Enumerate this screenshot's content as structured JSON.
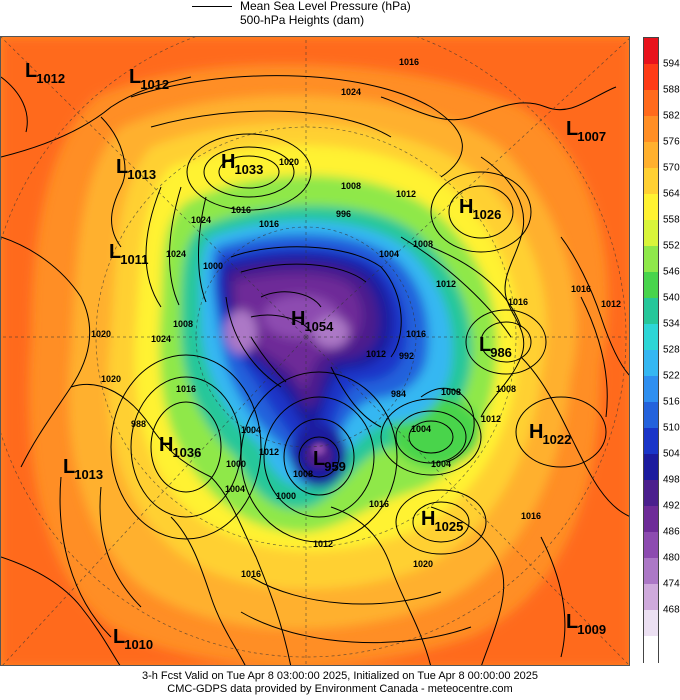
{
  "legend": {
    "line_label_1": "Mean Sea Level Pressure (hPa)",
    "line_label_2": "500-hPa Heights (dam)"
  },
  "colorbar": {
    "ticks": [
      "594",
      "588",
      "582",
      "576",
      "570",
      "564",
      "558",
      "552",
      "546",
      "540",
      "534",
      "528",
      "522",
      "516",
      "510",
      "504",
      "498",
      "492",
      "486",
      "480",
      "474",
      "468"
    ],
    "colors": [
      "#e8121c",
      "#fe3b16",
      "#ff6a1c",
      "#ff8e25",
      "#ffb02e",
      "#ffd033",
      "#fff232",
      "#d9f53a",
      "#8fe84a",
      "#48d44c",
      "#26c79a",
      "#2dd6d6",
      "#35b7f2",
      "#2f8ff0",
      "#2462dc",
      "#1a35c8",
      "#1c1b9e",
      "#4b1f8d",
      "#6e2b98",
      "#8d4bb0",
      "#ac78c6",
      "#cfaadc",
      "#ece0f2",
      "#ffffff"
    ]
  },
  "systems": [
    {
      "type": "L",
      "value": "1012",
      "name": "low-1012-nw"
    },
    {
      "type": "L",
      "value": "1012",
      "name": "low-1012-n"
    },
    {
      "type": "L",
      "value": "1013",
      "name": "low-1013-w"
    },
    {
      "type": "H",
      "value": "1033",
      "name": "high-1033"
    },
    {
      "type": "L",
      "value": "1007",
      "name": "low-1007"
    },
    {
      "type": "H",
      "value": "1026",
      "name": "high-1026"
    },
    {
      "type": "L",
      "value": "1011",
      "name": "low-1011"
    },
    {
      "type": "H",
      "value": "1054",
      "name": "high-1054"
    },
    {
      "type": "L",
      "value": "986",
      "name": "low-986"
    },
    {
      "type": "H",
      "value": "1022",
      "name": "high-1022"
    },
    {
      "type": "H",
      "value": "1036",
      "name": "high-1036"
    },
    {
      "type": "L",
      "value": "959",
      "name": "low-959"
    },
    {
      "type": "L",
      "value": "1013",
      "name": "low-1013-sw"
    },
    {
      "type": "H",
      "value": "1025",
      "name": "high-1025"
    },
    {
      "type": "L",
      "value": "1010",
      "name": "low-1010"
    },
    {
      "type": "L",
      "value": "1009",
      "name": "low-1009"
    }
  ],
  "isobar_labels": [
    "1016",
    "1024",
    "1020",
    "1008",
    "1012",
    "1016",
    "1024",
    "1000",
    "1020",
    "1024",
    "1016",
    "1008",
    "1004",
    "996",
    "1004",
    "1008",
    "1012",
    "1016",
    "1016",
    "1016",
    "1012",
    "1008",
    "1004",
    "1000",
    "992",
    "1008",
    "1012",
    "1004",
    "1012",
    "1016",
    "1020",
    "1016",
    "1012",
    "1004",
    "1000",
    "1008",
    "988",
    "984",
    "1016",
    "1024",
    "1012",
    "1016",
    "1020"
  ],
  "footer": {
    "line1": "3-h Fcst Valid on Tue Apr  8 03:00:00 2025, Initialized on Tue Apr  8 00:00:00 2025",
    "line2": "CMC-GDPS data provided by Environment Canada - meteocentre.com"
  }
}
